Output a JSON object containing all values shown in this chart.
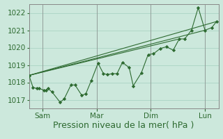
{
  "xlabel": "Pression niveau de la mer( hPa )",
  "bg_color": "#cce8dc",
  "grid_color": "#aad4c4",
  "line_color": "#2d6a30",
  "marker_color": "#2d6a30",
  "ylim": [
    1016.5,
    1022.5
  ],
  "yticks": [
    1017,
    1018,
    1019,
    1020,
    1021,
    1022
  ],
  "xtick_labels": [
    "Sam",
    "Mar",
    "Dim",
    "Lun"
  ],
  "xtick_positions": [
    1,
    5,
    9,
    13
  ],
  "xlim": [
    0,
    14
  ],
  "series1_x": [
    0.0,
    0.3,
    0.6,
    0.75,
    1.1,
    1.25,
    1.4,
    1.7,
    2.3,
    2.6,
    3.1,
    3.4,
    3.9,
    4.2,
    4.6,
    5.1,
    5.5,
    5.8,
    6.15,
    6.5,
    6.9,
    7.4,
    7.7,
    8.3,
    8.8,
    9.2,
    9.7,
    10.15,
    10.65,
    11.1,
    11.5,
    12.0,
    12.5,
    13.0,
    13.5,
    13.85
  ],
  "series1_y": [
    1018.4,
    1017.7,
    1017.65,
    1017.65,
    1017.55,
    1017.55,
    1017.65,
    1017.45,
    1016.85,
    1017.05,
    1017.85,
    1017.85,
    1017.25,
    1017.35,
    1018.1,
    1019.1,
    1018.5,
    1018.45,
    1018.5,
    1018.5,
    1019.15,
    1018.85,
    1017.8,
    1018.55,
    1019.6,
    1019.65,
    1019.95,
    1020.05,
    1019.85,
    1020.5,
    1020.5,
    1021.0,
    1022.3,
    1021.0,
    1021.15,
    1021.5
  ],
  "trend1_x": [
    0.0,
    13.0
  ],
  "trend1_y": [
    1018.4,
    1021.0
  ],
  "trend2_x": [
    0.0,
    11.1
  ],
  "trend2_y": [
    1018.4,
    1020.5
  ],
  "trend3_x": [
    0.0,
    13.85
  ],
  "trend3_y": [
    1018.4,
    1021.5
  ],
  "xlabel_fontsize": 9,
  "tick_fontsize": 7.5,
  "vline_positions": [
    0,
    1,
    5,
    9,
    13
  ],
  "spine_color": "#888888"
}
